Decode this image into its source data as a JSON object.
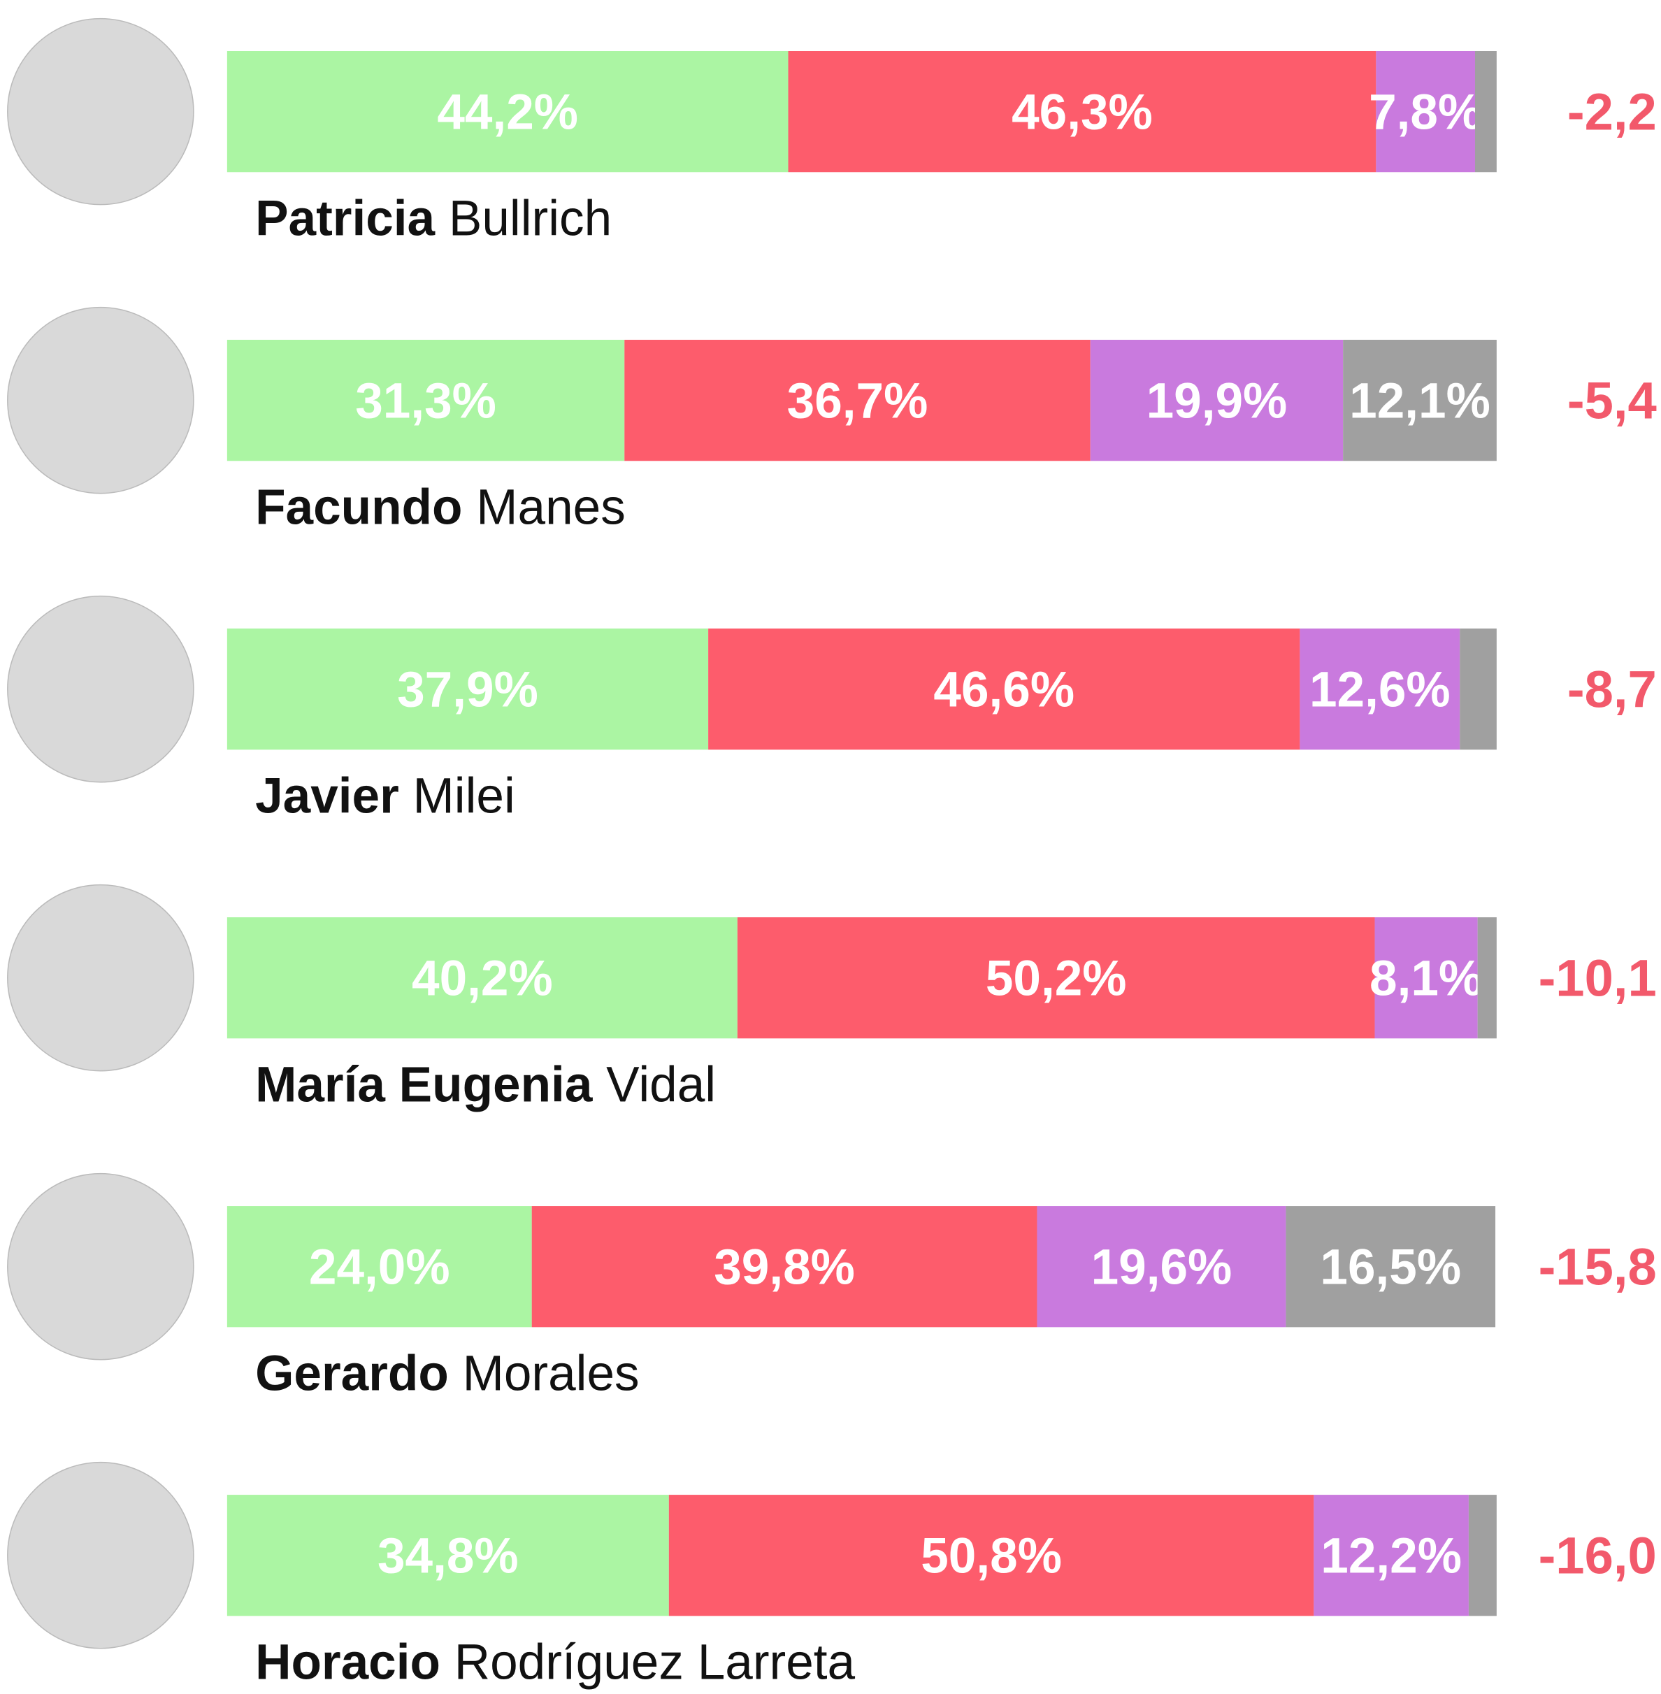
{
  "chart_data": {
    "type": "stacked_bar",
    "first_names": [
      "Patricia",
      "Facundo",
      "Javier",
      "María Eugenia",
      "Gerardo",
      "Horacio"
    ],
    "last_names": [
      "Bullrich",
      "Manes",
      "Milei",
      "Vidal",
      "Morales",
      "Rodríguez Larreta"
    ],
    "xlim": [
      0,
      100
    ],
    "series": [
      {
        "color": "#abf5a3",
        "values": [
          44.2,
          31.3,
          37.9,
          40.2,
          24.0,
          34.8
        ],
        "value_labels": [
          "44,2%",
          "31,3%",
          "37,9%",
          "40,2%",
          "24,0%",
          "34,8%"
        ]
      },
      {
        "color": "#fd5c6c",
        "values": [
          46.3,
          36.7,
          46.6,
          50.2,
          39.8,
          50.8
        ],
        "value_labels": [
          "46,3%",
          "36,7%",
          "46,6%",
          "50,2%",
          "39,8%",
          "50,8%"
        ]
      },
      {
        "color": "#c97ade",
        "values": [
          7.8,
          19.9,
          12.6,
          8.1,
          19.6,
          12.2
        ],
        "value_labels": [
          "7,8%",
          "19,9%",
          "12,6%",
          "8,1%",
          "19,6%",
          "12,2%"
        ]
      },
      {
        "color": "#a0a0a0",
        "values": [
          1.7,
          12.1,
          2.9,
          1.5,
          16.5,
          2.2
        ],
        "value_labels": [
          null,
          "12,1%",
          null,
          null,
          "16,5%",
          null
        ]
      }
    ],
    "differences": [
      -2.2,
      -5.4,
      -8.7,
      -10.1,
      -15.8,
      -16.0
    ],
    "difference_labels": [
      "-2,2",
      "-5,4",
      "-8,7",
      "-10,1",
      "-15,8",
      "-16,0"
    ],
    "difference_color": "#f2596b"
  }
}
